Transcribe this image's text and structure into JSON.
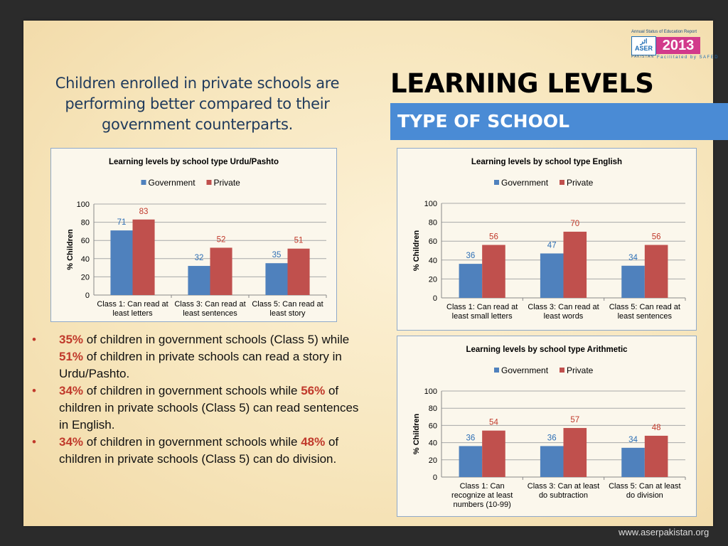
{
  "intro_text": "Children enrolled in private schools are performing better compared to their government counterparts.",
  "title": "LEARNING LEVELS",
  "subtitle": "TYPE OF SCHOOL",
  "logo": {
    "top_text": "Annual Status of Education Report",
    "urdu": "اثر",
    "word": "ASER",
    "country": "PAKISTAN",
    "year": "2013",
    "facilitated": "Facilitated by SAFED"
  },
  "colors": {
    "government": "#4f81bd",
    "private": "#c0504d",
    "government_label": "#2e6fb5",
    "private_label": "#c0392b",
    "accent": "#4a8bd5"
  },
  "bullets": [
    {
      "hl1": "35%",
      "t1": " of children in government schools (Class 5) while ",
      "hl2": "51%",
      "t2": "  of children in private schools can read a story in Urdu/Pashto."
    },
    {
      "hl1": "34%",
      "t1": " of children in government schools while ",
      "hl2": "56%",
      "t2": " of children in private schools (Class 5) can read sentences in English."
    },
    {
      "hl1": "34%",
      "t1": " of children in government schools while ",
      "hl2": "48%",
      "t2": " of children in private schools (Class 5) can do division. "
    }
  ],
  "bullet_marker": "•",
  "footer_url": "www.aserpakistan.org",
  "chart_data": [
    {
      "type": "bar",
      "title": "Learning levels by school type Urdu/Pashto",
      "ylabel": "% Children",
      "ylim": [
        0,
        100
      ],
      "yticks": [
        0,
        20,
        40,
        60,
        80,
        100
      ],
      "categories": [
        [
          "Class 1: Can read at",
          "least letters"
        ],
        [
          "Class 3: Can read at",
          "least sentences"
        ],
        [
          "Class 5: Can read at",
          "least story"
        ]
      ],
      "series": [
        {
          "name": "Government",
          "values": [
            71,
            32,
            35
          ]
        },
        {
          "name": "Private",
          "values": [
            83,
            52,
            51
          ]
        }
      ],
      "legend": "top",
      "grid": true
    },
    {
      "type": "bar",
      "title": "Learning levels by school type English",
      "ylabel": "% Children",
      "ylim": [
        0,
        100
      ],
      "yticks": [
        0,
        20,
        40,
        60,
        80,
        100
      ],
      "categories": [
        [
          "Class 1: Can read at",
          "least small letters"
        ],
        [
          "Class 3: Can read at",
          "least words"
        ],
        [
          "Class 5: Can read at",
          "least sentences"
        ]
      ],
      "series": [
        {
          "name": "Government",
          "values": [
            36,
            47,
            34
          ]
        },
        {
          "name": "Private",
          "values": [
            56,
            70,
            56
          ]
        }
      ],
      "legend": "top",
      "grid": true
    },
    {
      "type": "bar",
      "title": "Learning levels by school type Arithmetic",
      "ylabel": "% Children",
      "ylim": [
        0,
        100
      ],
      "yticks": [
        0,
        20,
        40,
        60,
        80,
        100
      ],
      "categories": [
        [
          "Class 1: Can",
          "recognize at least",
          "numbers (10-99)"
        ],
        [
          "Class 3: Can at least",
          "do subtraction"
        ],
        [
          "Class 5: Can at least",
          "do division"
        ]
      ],
      "series": [
        {
          "name": "Government",
          "values": [
            36,
            36,
            34
          ]
        },
        {
          "name": "Private",
          "values": [
            54,
            57,
            48
          ]
        }
      ],
      "legend": "top",
      "grid": true
    }
  ]
}
